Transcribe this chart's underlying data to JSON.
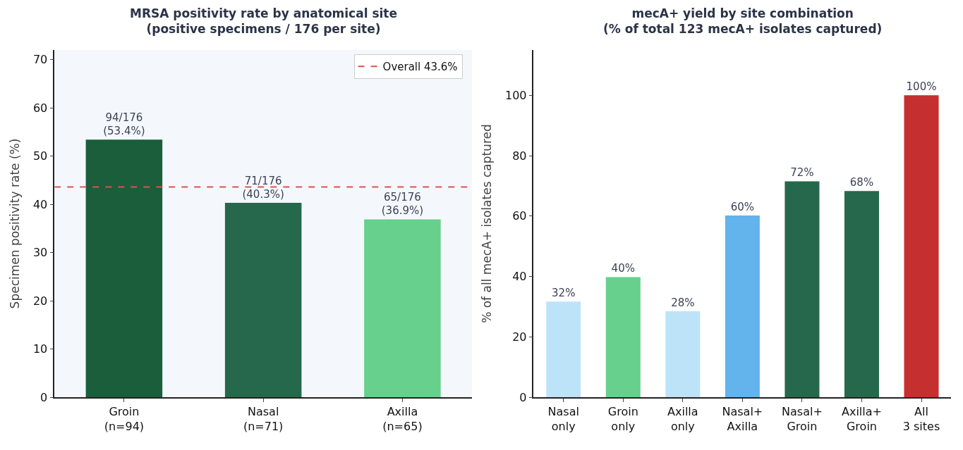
{
  "chart_data": [
    {
      "type": "bar",
      "title": "MRSA positivity rate by anatomical site\n(positive specimens / 176 per site)",
      "ylabel": "Specimen positivity rate (%)",
      "categories": [
        "Groin\n(n=94)",
        "Nasal\n(n=71)",
        "Axilla\n(n=65)"
      ],
      "values": [
        53.4,
        40.3,
        36.9
      ],
      "colors": [
        "#1b5e3b",
        "#26684b",
        "#66d08c"
      ],
      "value_labels": [
        "94/176\n(53.4%)",
        "71/176\n(40.3%)",
        "65/176\n(36.9%)"
      ],
      "ylim": [
        0,
        72
      ],
      "yticks": [
        0,
        10,
        20,
        30,
        40,
        50,
        60,
        70
      ],
      "ref_lines": [
        {
          "axis": "y",
          "value": 43.6,
          "label": "Overall 43.6%",
          "color": "#d9534f",
          "line_style": "dashed"
        }
      ],
      "legend": "top right",
      "grid": false
    },
    {
      "type": "bar",
      "title": "mecA+ yield by site combination\n(% of total 123 mecA+ isolates captured)",
      "ylabel": "% of all mecA+ isolates captured",
      "categories": [
        "Nasal\nonly",
        "Groin\nonly",
        "Axilla\nonly",
        "Nasal+\nAxilla",
        "Nasal+\nGroin",
        "Axilla+\nGroin",
        "All\n3 sites"
      ],
      "values": [
        31.7,
        39.8,
        28.5,
        60.2,
        71.5,
        68.3,
        100
      ],
      "colors": [
        "#bde3f8",
        "#66d08c",
        "#bde3f8",
        "#63b3ec",
        "#26684b",
        "#26684b",
        "#c62f2f"
      ],
      "value_labels": [
        "32%",
        "40%",
        "28%",
        "60%",
        "72%",
        "68%",
        "100%"
      ],
      "ylim": [
        0,
        115
      ],
      "yticks": [
        0,
        20,
        40,
        60,
        80,
        100
      ],
      "grid": false
    }
  ]
}
